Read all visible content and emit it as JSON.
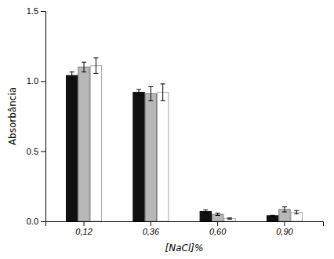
{
  "chart_data": {
    "type": "bar",
    "categories": [
      "0,12",
      "0,36",
      "0,60",
      "0,90"
    ],
    "series": [
      {
        "color": "#111111",
        "values": [
          1.04,
          0.92,
          0.07,
          0.04
        ],
        "errors": [
          0.025,
          0.02,
          0.012,
          0.003
        ]
      },
      {
        "color": "#b8b8b8",
        "values": [
          1.1,
          0.91,
          0.05,
          0.085
        ],
        "errors": [
          0.035,
          0.05,
          0.008,
          0.018
        ]
      },
      {
        "color": "#ffffff",
        "values": [
          1.11,
          0.92,
          0.02,
          0.065
        ],
        "errors": [
          0.055,
          0.06,
          0.004,
          0.012
        ]
      }
    ],
    "xlabel": "[NaCl]%",
    "ylabel": "Absorbância",
    "ylim": [
      0.0,
      1.5
    ],
    "yticks": [
      {
        "value": 0,
        "label": "0.0"
      },
      0.5,
      {
        "value": 1,
        "label": "1.0"
      },
      1.5
    ],
    "grid": false
  }
}
